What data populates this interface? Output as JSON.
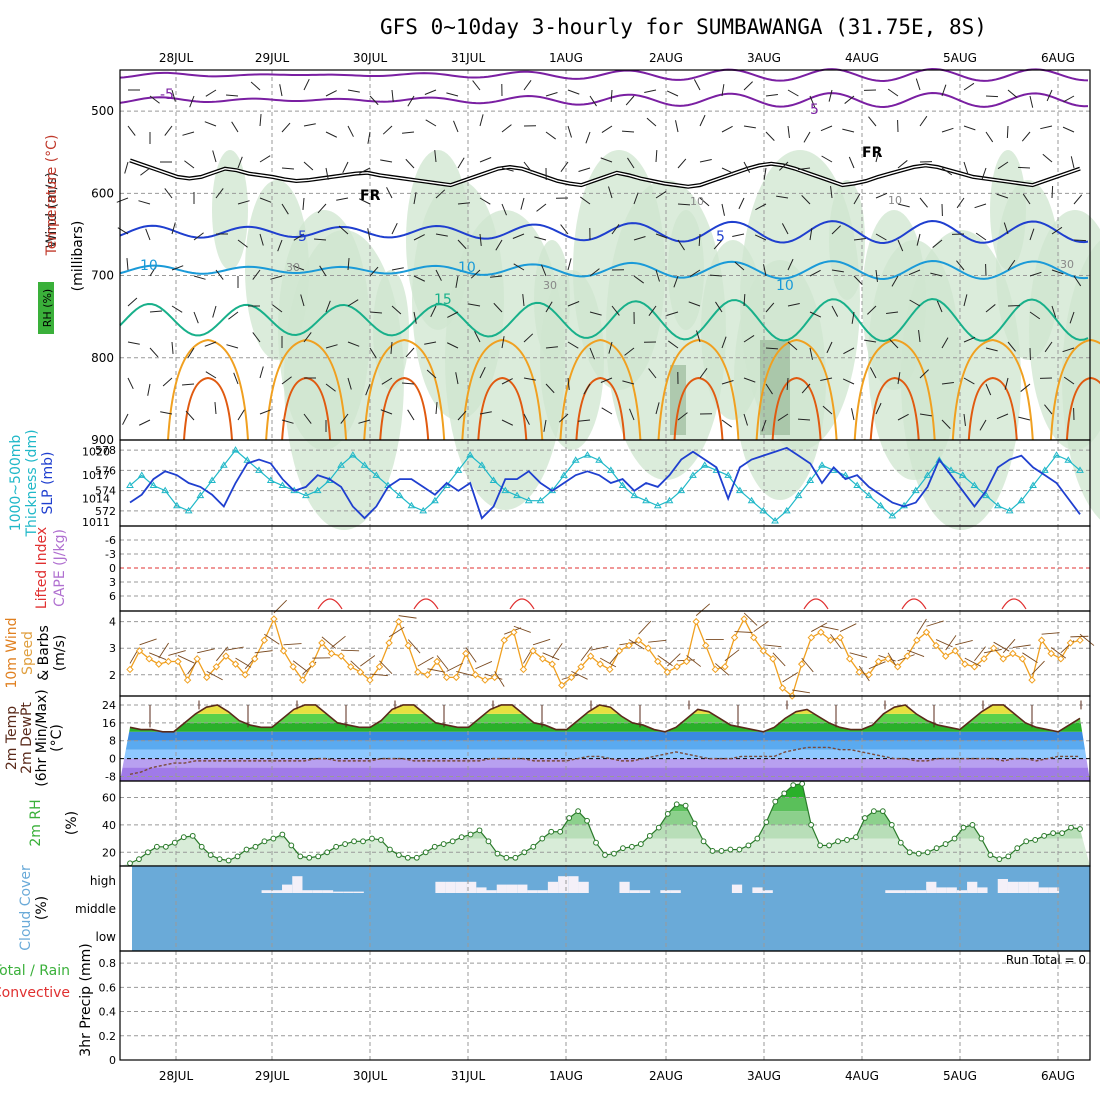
{
  "header": {
    "title": "GFS 0~10day 3-hourly for SUMBAWANGA (31.75E, 8S)"
  },
  "colors": {
    "frame": "#000000",
    "grid": "#999999",
    "freezing": "#000000",
    "temp_cold": "#7a1fa2",
    "temp_blue": "#1f3fcf",
    "temp_cyan": "#1a9ad8",
    "temp_green": "#18b08a",
    "temp_orange": "#f0a020",
    "temp_red": "#e05a10",
    "rh_fill": "#cfe6cf",
    "rh_dark": "#8fb38f",
    "slp": "#1f3fcf",
    "thickness": "#20b8c8",
    "wind": "#f0a020",
    "rh2m": "#3ab03a",
    "cloud": "#6aaad8",
    "cloud_clear": "#f4f0f8"
  },
  "chart_data": [
    {
      "name": "upper-air",
      "type": "line",
      "x_labels": [
        "28JUL",
        "29JUL",
        "30JUL",
        "31JUL",
        "1AUG",
        "2AUG",
        "3AUG",
        "4AUG",
        "5AUG",
        "6AUG"
      ],
      "ylabel": [
        "Wind (m/s)",
        "Temperature (°C)",
        "RH (%)",
        "(millibars)"
      ],
      "y_ticks": [
        500,
        600,
        700,
        800,
        900
      ],
      "ylim": [
        450,
        900
      ],
      "contour_labels": [
        "-5",
        "5",
        "FR",
        "FR",
        "5",
        "5",
        "10",
        "10",
        "10",
        "15",
        "10",
        "10",
        "30",
        "30",
        "30"
      ],
      "freezing_level_mb": [
        560,
        565,
        570,
        575,
        580,
        582,
        580,
        575,
        570,
        572,
        576,
        578,
        580,
        583,
        585,
        584,
        582,
        580,
        578,
        576,
        575,
        578,
        580,
        582,
        584,
        586,
        588,
        590,
        585,
        580,
        575,
        570,
        568,
        570,
        575,
        580,
        585,
        588,
        590,
        585,
        580,
        575,
        578,
        582,
        585,
        588,
        590,
        592,
        590,
        585,
        580,
        575,
        570,
        566,
        564,
        566,
        570,
        575,
        580,
        585,
        590,
        588,
        585,
        580,
        576,
        572,
        568,
        566,
        568,
        572,
        576,
        580,
        582,
        584,
        586,
        588,
        590,
        585,
        580,
        575,
        570
      ]
    },
    {
      "name": "slp-thickness",
      "type": "line",
      "ylabel": [
        "1000~500mb",
        "Thickness (dm)",
        "SLP (mb)"
      ],
      "left_ticks": [
        578,
        576,
        574,
        572
      ],
      "right_ticks": [
        1020,
        1017,
        1014,
        1011
      ],
      "series": [
        {
          "name": "SLP (mb)",
          "axis": "right",
          "values": [
            1013.5,
            1014.5,
            1016.5,
            1017.5,
            1017,
            1016,
            1015.5,
            1014.5,
            1013,
            1016,
            1018.5,
            1019,
            1018.5,
            1016.5,
            1015,
            1015.5,
            1017,
            1016.5,
            1015.5,
            1013,
            1011.5,
            1013,
            1015.5,
            1016.5,
            1016.5,
            1015.5,
            1014.5,
            1016,
            1015,
            1016,
            1011.5,
            1013,
            1016.5,
            1016.5,
            1017.5,
            1016,
            1015,
            1016,
            1017,
            1017.5,
            1017,
            1016,
            1016.5,
            1015,
            1016,
            1015.5,
            1017,
            1019,
            1020,
            1019,
            1018,
            1014,
            1018,
            1019,
            1019.5,
            1020,
            1020.5,
            1019.5,
            1018.5,
            1016,
            1018,
            1016.5,
            1017,
            1015.5,
            1014.5,
            1013.5,
            1013,
            1013.5,
            1015.5,
            1019,
            1017,
            1015,
            1013,
            1015,
            1018,
            1019,
            1019.5,
            1018,
            1017,
            1016,
            1014,
            1012
          ]
        },
        {
          "name": "Thickness (dm)",
          "axis": "left",
          "values": [
            574.5,
            575.5,
            574.5,
            574,
            572.5,
            572,
            573.5,
            575,
            576.5,
            578,
            577,
            576,
            575,
            574.5,
            574,
            573.5,
            574,
            575,
            576.5,
            577.5,
            576.5,
            575.5,
            574.5,
            573.5,
            572.5,
            572,
            573,
            574.5,
            576,
            577.5,
            576.5,
            575,
            574,
            573.5,
            573,
            573,
            574,
            575.5,
            577,
            577.5,
            577,
            576,
            574.5,
            573.5,
            573,
            572.5,
            573,
            574,
            575.5,
            576.5,
            576,
            575.5,
            574,
            573,
            572,
            571,
            572,
            573.5,
            575,
            576.5,
            576,
            575.5,
            574.5,
            573.5,
            572.5,
            571.5,
            572.5,
            574,
            575.5,
            577,
            576,
            575.5,
            574.5,
            573.5,
            572.5,
            572,
            573,
            574.5,
            576,
            577.5,
            577,
            576
          ]
        }
      ]
    },
    {
      "name": "cape-lifted-index",
      "type": "line",
      "ylabel": [
        "Lifted Index",
        "CAPE (J/kg)"
      ],
      "y_ticks": [
        "-6",
        "-3",
        "0",
        "3",
        "6"
      ],
      "series": [
        {
          "name": "Lifted Index",
          "values": []
        }
      ]
    },
    {
      "name": "10m-wind",
      "type": "line",
      "ylabel": [
        "10m Wind",
        "Speed",
        "& Barbs",
        "(m/s)"
      ],
      "y_ticks": [
        4,
        3,
        2
      ],
      "ylim": [
        1.2,
        4.4
      ],
      "series": [
        {
          "name": "Speed",
          "values": [
            2.2,
            2.9,
            2.6,
            2.4,
            2.5,
            2.5,
            1.8,
            2.6,
            1.9,
            2.3,
            2.7,
            2.4,
            2.0,
            2.6,
            3.3,
            4.1,
            2.9,
            2.3,
            1.8,
            2.4,
            3.2,
            2.8,
            2.7,
            2.3,
            2.1,
            1.8,
            2.3,
            3.2,
            4.0,
            3.1,
            2.1,
            2.0,
            2.5,
            1.9,
            1.9,
            2.8,
            2.0,
            1.8,
            1.9,
            3.3,
            3.6,
            2.2,
            2.9,
            2.6,
            2.4,
            1.6,
            1.9,
            2.3,
            2.7,
            2.4,
            2.2,
            2.9,
            3.1,
            3.3,
            3.0,
            2.5,
            2.1,
            2.3,
            2.5,
            4.0,
            3.1,
            2.2,
            2.3,
            3.4,
            4.1,
            3.4,
            2.9,
            2.6,
            1.5,
            1.2,
            2.4,
            3.4,
            3.6,
            3.3,
            3.4,
            2.6,
            2.1,
            2.0,
            2.5,
            2.6,
            2.3,
            2.7,
            3.3,
            3.6,
            3.1,
            2.7,
            2.9,
            2.4,
            2.3,
            2.6,
            3.0,
            2.6,
            2.8,
            2.6,
            1.8,
            3.3,
            2.8,
            2.6,
            3.2,
            3.3
          ]
        }
      ]
    },
    {
      "name": "2m-temperature",
      "type": "area",
      "ylabel": [
        "2m Temp",
        "2m DewPt",
        "(6hr Min/Max)",
        "(°C)"
      ],
      "y_ticks": [
        24,
        16,
        8,
        0,
        -8
      ],
      "ylim": [
        -10,
        28
      ],
      "series": [
        {
          "name": "2m Temp",
          "values": [
            14,
            13,
            13,
            12,
            12,
            16,
            20,
            23,
            24,
            21,
            17,
            15,
            14,
            14,
            18,
            22,
            24,
            24,
            20,
            16,
            15,
            14,
            14,
            17,
            22,
            24,
            24,
            20,
            16,
            15,
            14,
            14,
            18,
            22,
            24,
            24,
            20,
            16,
            15,
            13,
            13,
            17,
            21,
            24,
            23,
            19,
            16,
            15,
            13,
            12,
            14,
            18,
            22,
            21,
            18,
            15,
            14,
            13,
            12,
            14,
            18,
            21,
            22,
            19,
            16,
            14,
            13,
            13,
            15,
            20,
            23,
            24,
            20,
            17,
            15,
            14,
            13,
            17,
            21,
            24,
            24,
            20,
            16,
            14,
            13,
            12,
            15,
            18
          ]
        },
        {
          "name": "2m DewPt",
          "values": [
            -7,
            -6,
            -4,
            -3,
            -2,
            -2,
            -1,
            -1,
            -1,
            -1,
            -1,
            -1,
            -1,
            -1,
            -1,
            -1,
            -1,
            0,
            0,
            -1,
            -1,
            -1,
            -1,
            0,
            0,
            0,
            -1,
            -1,
            -1,
            -1,
            -1,
            -1,
            -1,
            0,
            0,
            0,
            0,
            -1,
            -1,
            -1,
            -1,
            0,
            1,
            1,
            0,
            -1,
            -1,
            0,
            1,
            2,
            3,
            2,
            1,
            0,
            0,
            0,
            1,
            1,
            1,
            1,
            3,
            4,
            5,
            5,
            5,
            4,
            4,
            3,
            2,
            1,
            0,
            0,
            -1,
            -1,
            0,
            0,
            0,
            0,
            0,
            0,
            -1,
            0,
            0,
            -1,
            0,
            1,
            1,
            1
          ]
        }
      ]
    },
    {
      "name": "2m-rh",
      "type": "area",
      "ylabel": [
        "2m RH",
        "(%)"
      ],
      "y_ticks": [
        60,
        40,
        20
      ],
      "ylim": [
        10,
        72
      ],
      "series": [
        {
          "name": "2m RH",
          "values": [
            12,
            15,
            20,
            24,
            24,
            27,
            31,
            32,
            24,
            18,
            15,
            14,
            17,
            22,
            24,
            28,
            30,
            33,
            25,
            17,
            16,
            17,
            20,
            24,
            26,
            28,
            28,
            30,
            29,
            22,
            18,
            16,
            16,
            20,
            24,
            26,
            28,
            31,
            33,
            36,
            28,
            19,
            16,
            16,
            20,
            24,
            30,
            35,
            35,
            45,
            50,
            43,
            27,
            18,
            19,
            23,
            24,
            26,
            32,
            38,
            48,
            55,
            54,
            41,
            28,
            21,
            21,
            22,
            22,
            25,
            30,
            42,
            57,
            63,
            69,
            70,
            40,
            25,
            25,
            28,
            29,
            31,
            45,
            50,
            50,
            40,
            27,
            20,
            19,
            20,
            23,
            26,
            30,
            38,
            40,
            30,
            18,
            15,
            17,
            23,
            28,
            29,
            32,
            34,
            34,
            38,
            37
          ]
        }
      ]
    },
    {
      "name": "cloud-cover",
      "type": "bar",
      "ylabel": [
        "Cloud Cover",
        "(%)"
      ],
      "y_ticks": [
        "high",
        "middle",
        "low"
      ],
      "series": [
        {
          "name": "high",
          "values": [
            0,
            0,
            0,
            0,
            0,
            0,
            0,
            10,
            10,
            30,
            60,
            10,
            10,
            10,
            5,
            5,
            5,
            0,
            0,
            0,
            0,
            0,
            0,
            0,
            40,
            40,
            40,
            40,
            20,
            10,
            30,
            30,
            30,
            10,
            10,
            40,
            60,
            60,
            40,
            0,
            0,
            0,
            40,
            10,
            10,
            0,
            10,
            10,
            0,
            0,
            0,
            0,
            0,
            30,
            0,
            20,
            10,
            0,
            0,
            0,
            0,
            0,
            0,
            0,
            0,
            0,
            0,
            0,
            10,
            10,
            10,
            10,
            40,
            20,
            20,
            10,
            40,
            20,
            0,
            50,
            40,
            40,
            40,
            20,
            20,
            0,
            0,
            0,
            0
          ]
        }
      ]
    },
    {
      "name": "precipitation",
      "type": "bar",
      "ylabel": [
        "Total / Rain",
        "Convective",
        "3hr Precip (mm)"
      ],
      "annotation": "Run Total = 0",
      "y_ticks": [
        "0.8",
        "0.6",
        "0.4",
        "0.2",
        "0"
      ],
      "ylim": [
        0,
        0.9
      ],
      "series": [
        {
          "name": "Total / Rain",
          "values": []
        },
        {
          "name": "Convective",
          "values": []
        }
      ]
    }
  ]
}
